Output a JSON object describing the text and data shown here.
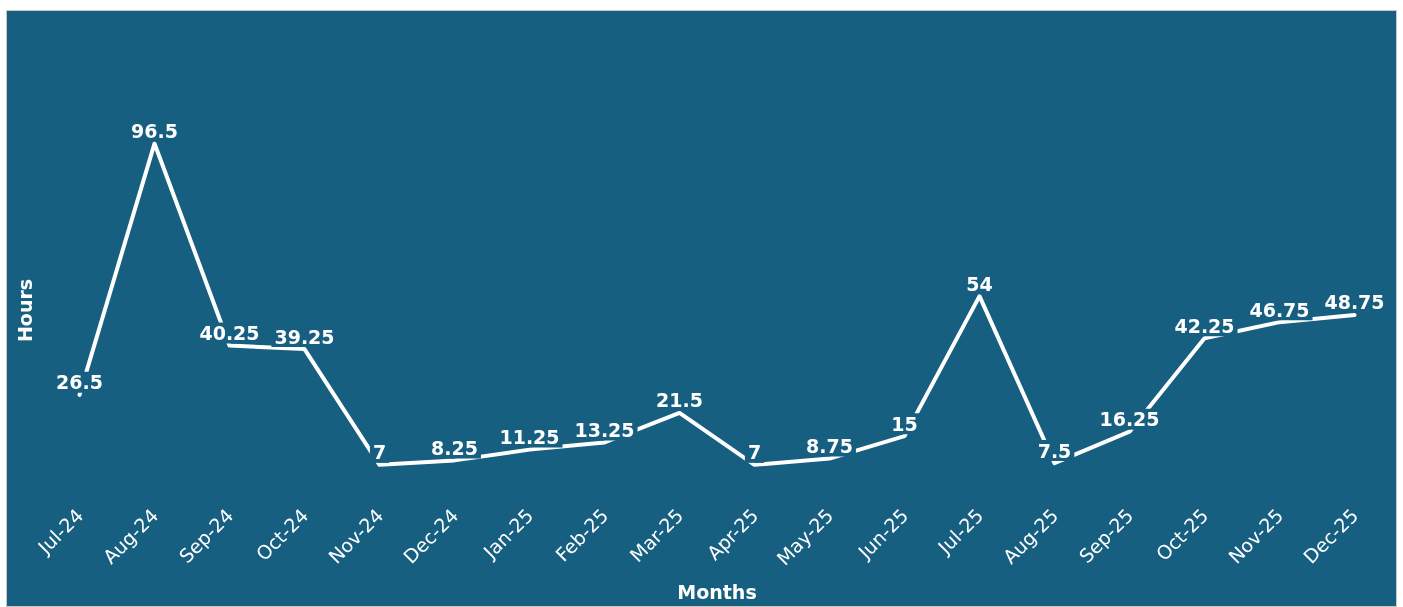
{
  "chart_data": {
    "type": "line",
    "xlabel": "Months",
    "ylabel": "Hours",
    "categories": [
      "Jul-24",
      "Aug-24",
      "Sep-24",
      "Oct-24",
      "Nov-24",
      "Dec-24",
      "Jan-25",
      "Feb-25",
      "Mar-25",
      "Apr-25",
      "May-25",
      "Jun-25",
      "Jul-25",
      "Aug-25",
      "Sep-25",
      "Oct-25",
      "Nov-25",
      "Dec-25"
    ],
    "series": [
      {
        "color": "#ffffff",
        "values": [
          26.5,
          96.5,
          40.25,
          39.25,
          7,
          8.25,
          11.25,
          13.25,
          21.5,
          7,
          8.75,
          15,
          54,
          7.5,
          16.25,
          42.25,
          46.75,
          48.75
        ]
      }
    ],
    "data_labels": true,
    "grid": false,
    "marker": "none",
    "line_style": "solid",
    "tick_labels": "x"
  }
}
